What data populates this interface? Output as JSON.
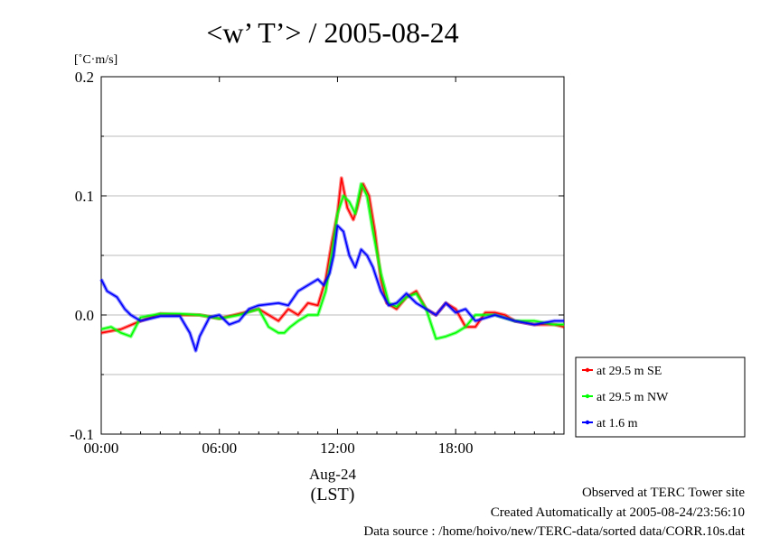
{
  "chart_data": {
    "type": "line",
    "title": "<w’ T’> / 2005-08-24",
    "ylabel": "[˚C·m/s]",
    "ylim": [
      -0.1,
      0.2
    ],
    "xlim": [
      0,
      23.5
    ],
    "y_ticks": [
      {
        "v": -0.1,
        "label": "-0.1"
      },
      {
        "v": 0.0,
        "label": "0.0"
      },
      {
        "v": 0.1,
        "label": "0.1"
      },
      {
        "v": 0.2,
        "label": "0.2"
      }
    ],
    "x_ticks": [
      {
        "v": 0,
        "label": "00:00"
      },
      {
        "v": 6,
        "label": "06:00"
      },
      {
        "v": 12,
        "label": "12:00"
      },
      {
        "v": 18,
        "label": "18:00"
      }
    ],
    "date_label": "Aug-24",
    "xlabel": "(LST)",
    "grid": "horizontal",
    "legend_position": "right",
    "series": [
      {
        "name": "at 29.5 m SE",
        "color": "#ff0000",
        "x": [
          0,
          1,
          2,
          3,
          4,
          5,
          6,
          7,
          8,
          8.5,
          9,
          9.5,
          10,
          10.5,
          11,
          11.4,
          11.7,
          12,
          12.2,
          12.5,
          12.8,
          13,
          13.3,
          13.6,
          13.9,
          14.2,
          14.5,
          15,
          15.5,
          16,
          16.5,
          17,
          17.5,
          18,
          18.5,
          19,
          19.5,
          20,
          20.5,
          21,
          22,
          23,
          23.5
        ],
        "y": [
          -0.015,
          -0.012,
          -0.005,
          0.001,
          0.0,
          0.0,
          -0.003,
          0.001,
          0.005,
          0.0,
          -0.005,
          0.005,
          0.0,
          0.01,
          0.008,
          0.03,
          0.06,
          0.085,
          0.115,
          0.09,
          0.08,
          0.09,
          0.11,
          0.1,
          0.07,
          0.03,
          0.01,
          0.005,
          0.015,
          0.02,
          0.005,
          0.0,
          0.01,
          0.005,
          -0.01,
          -0.01,
          0.002,
          0.002,
          0.0,
          -0.005,
          -0.008,
          -0.008,
          -0.01
        ]
      },
      {
        "name": "at 29.5 m NW",
        "color": "#00ff00",
        "x": [
          0,
          0.5,
          1,
          1.5,
          2,
          3,
          4,
          5,
          6,
          7,
          8,
          8.5,
          9,
          9.3,
          9.6,
          10,
          10.5,
          11,
          11.4,
          11.7,
          12,
          12.3,
          12.6,
          12.9,
          13.2,
          13.5,
          13.8,
          14.2,
          14.6,
          15,
          15.5,
          16,
          16.5,
          17,
          17.5,
          18,
          18.5,
          19,
          20,
          21,
          22,
          23,
          23.5
        ],
        "y": [
          -0.012,
          -0.01,
          -0.015,
          -0.018,
          -0.002,
          0.001,
          0.001,
          0.0,
          -0.003,
          0.0,
          0.005,
          -0.01,
          -0.015,
          -0.015,
          -0.01,
          -0.005,
          0.0,
          0.0,
          0.02,
          0.05,
          0.085,
          0.1,
          0.095,
          0.085,
          0.11,
          0.1,
          0.07,
          0.035,
          0.01,
          0.007,
          0.015,
          0.018,
          0.005,
          -0.02,
          -0.018,
          -0.015,
          -0.01,
          0.0,
          0.0,
          -0.005,
          -0.005,
          -0.008,
          -0.008
        ]
      },
      {
        "name": "at 1.6 m",
        "color": "#0000ff",
        "x": [
          0,
          0.3,
          0.8,
          1.2,
          1.5,
          2,
          3,
          4,
          4.5,
          4.8,
          5,
          5.5,
          6,
          6.5,
          7,
          7.5,
          8,
          9,
          9.5,
          10,
          10.5,
          11,
          11.3,
          11.6,
          11.8,
          12,
          12.3,
          12.6,
          12.9,
          13.2,
          13.5,
          13.8,
          14.2,
          14.6,
          15,
          15.5,
          16,
          16.5,
          17,
          17.5,
          18,
          18.5,
          19,
          20,
          21,
          22,
          23,
          23.5
        ],
        "y": [
          0.03,
          0.02,
          0.015,
          0.005,
          0.0,
          -0.005,
          -0.001,
          -0.001,
          -0.015,
          -0.03,
          -0.018,
          -0.002,
          0.0,
          -0.008,
          -0.005,
          0.005,
          0.008,
          0.01,
          0.008,
          0.02,
          0.025,
          0.03,
          0.025,
          0.035,
          0.05,
          0.075,
          0.07,
          0.05,
          0.04,
          0.055,
          0.05,
          0.04,
          0.02,
          0.008,
          0.01,
          0.018,
          0.01,
          0.005,
          0.0,
          0.01,
          0.002,
          0.005,
          -0.005,
          0.0,
          -0.005,
          -0.008,
          -0.005,
          -0.005
        ]
      }
    ]
  },
  "footer": {
    "line1": "Observed at TERC Tower site",
    "line2": "Created Automatically at 2005-08-24/23:56:10",
    "line3": "Data source : /home/hoivo/new/TERC-data/sorted  data/CORR.10s.dat"
  }
}
